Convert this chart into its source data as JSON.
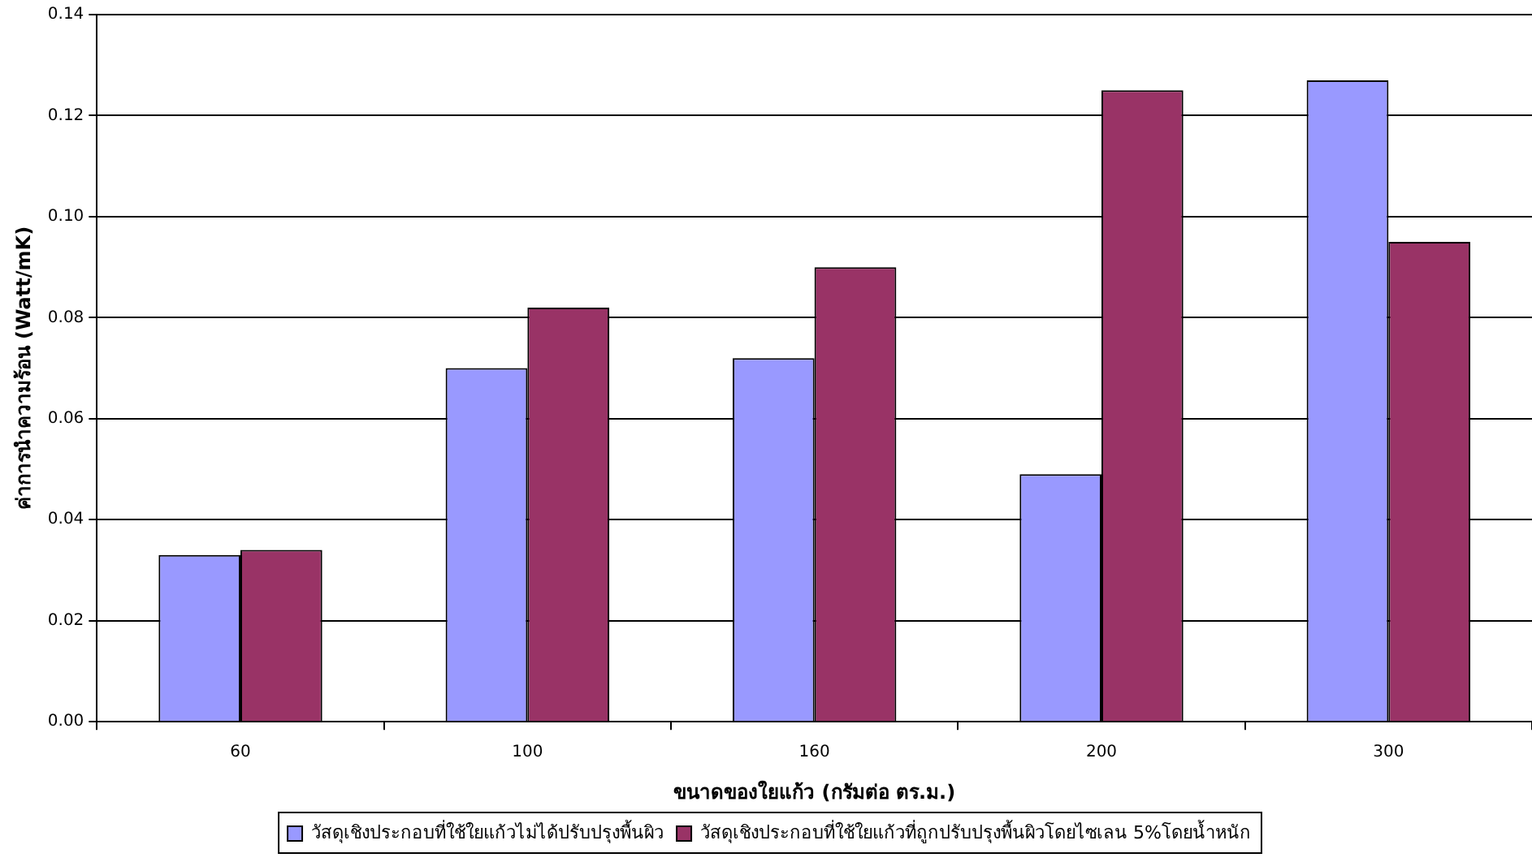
{
  "chart_data": {
    "type": "bar",
    "xlabel": "ขนาดของใยแก้ว (กรัมต่อ ตร.ม.)",
    "ylabel": "ค่าการนำความร้อน (Watt/mK)",
    "categories": [
      "60",
      "100",
      "160",
      "200",
      "300"
    ],
    "series": [
      {
        "name": "วัสดุเชิงประกอบที่ใช้ใยแก้วไม่ได้ปรับปรุงพื้นผิว",
        "color": "#9999ff",
        "values": [
          0.033,
          0.07,
          0.072,
          0.049,
          0.127
        ]
      },
      {
        "name": "วัสดุเชิงประกอบที่ใช้ใยแก้วที่ถูกปรับปรุงพื้นผิวโดยไซเลน 5%โดยน้ำหนัก",
        "color": "#993366",
        "values": [
          0.034,
          0.082,
          0.09,
          0.125,
          0.095
        ]
      }
    ],
    "ylim": [
      0,
      0.14
    ],
    "yticks": [
      {
        "value": 0,
        "label": "0.00"
      },
      {
        "value": 0.02,
        "label": "0.02"
      },
      {
        "value": 0.04,
        "label": "0.04"
      },
      {
        "value": 0.06,
        "label": "0.06"
      },
      {
        "value": 0.08,
        "label": "0.08"
      },
      {
        "value": 0.1,
        "label": "0.10"
      },
      {
        "value": 0.12,
        "label": "0.12"
      },
      {
        "value": 0.14,
        "label": "0.14"
      }
    ],
    "grid": "y",
    "legend": "bottom"
  }
}
